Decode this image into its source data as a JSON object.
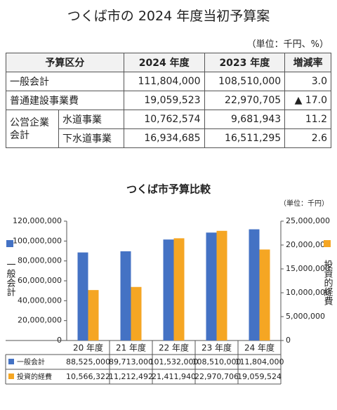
{
  "header": {
    "title": "つくば市の 2024 年度当初予算案",
    "unit": "（単位：千円、%）"
  },
  "table": {
    "header": [
      "予算区分",
      "2024 年度",
      "2023 年度",
      "増減率"
    ],
    "rows": [
      [
        "一般会計",
        "111,804,000",
        "108,510,000",
        "3.0"
      ],
      [
        "普通建設事業費",
        "19,059,523",
        "22,970,705",
        "▲ 17.0"
      ],
      [
        "公営企業会計",
        "水道事業",
        "10,762,574",
        "9,681,943",
        "11.2"
      ],
      [
        "下水道事業",
        "16,934,685",
        "16,511,295",
        "2.6"
      ]
    ]
  },
  "chart_data": {
    "type": "bar",
    "title": "つくば市予算比較",
    "unit": "（単位：千円）",
    "ylabel": "一般会計",
    "y2label": "投資的経費",
    "categories": [
      "20 年度",
      "21 年度",
      "22 年度",
      "23 年度",
      "24 年度"
    ],
    "series": [
      {
        "name": "一般会計",
        "color": "#4472c4",
        "axis": "y",
        "values": [
          88525000,
          89713000,
          101532000,
          108510000,
          111804000
        ],
        "value_labels": [
          "88,525,000",
          "89,713,000",
          "101,532,000",
          "108,510,000",
          "111,804,000"
        ]
      },
      {
        "name": "投資的経費",
        "color": "#f5a623",
        "axis": "y2",
        "values": [
          10566322,
          11212492,
          21411940,
          22970706,
          19059524
        ],
        "value_labels": [
          "10,566,322",
          "11,212,492",
          "21,411,940",
          "22,970,706",
          "19,059,524"
        ]
      }
    ],
    "ylim": [
      0,
      120000000
    ],
    "yticks": [
      0,
      {
        "value": 20000000,
        "label": "20,000,000"
      },
      {
        "value": 40000000,
        "label": "40,000,000"
      },
      {
        "value": 60000000,
        "label": "60,000,000"
      },
      {
        "value": 80000000,
        "label": "80,000,000"
      },
      {
        "value": 100000000,
        "label": "100,000,000"
      },
      {
        "value": 120000000,
        "label": "120,000,000"
      }
    ],
    "y2lim": [
      0,
      25000000
    ],
    "y2ticks": [
      0,
      {
        "value": 5000000,
        "label": "5,000,000"
      },
      {
        "value": 10000000,
        "label": "10,000,000"
      },
      {
        "value": 15000000,
        "label": "15,000,000"
      },
      {
        "value": 20000000,
        "label": "20,000,000"
      },
      {
        "value": 25000000,
        "label": "25,000,000"
      }
    ]
  }
}
